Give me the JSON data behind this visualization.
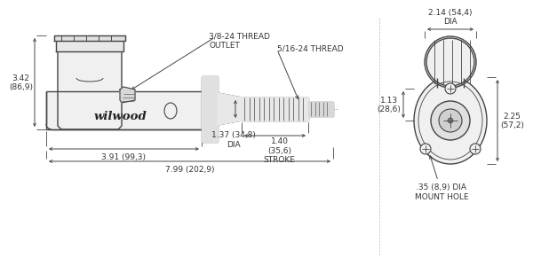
{
  "bg_color": "#ffffff",
  "line_color": "#444444",
  "text_color": "#333333",
  "annotations": {
    "thread_outlet": "3/8-24 THREAD\nOUTLET",
    "thread_side": "5/16-24 THREAD",
    "height_label": "3.42\n(86,9)",
    "length1_label": "3.91 (99,3)",
    "length2_label": "7.99 (202,9)",
    "dia_label": "1.37 (34,8)\nDIA",
    "stroke_label": "1.40\n(35,6)\nSTROKE",
    "top_dia_label": "2.14 (54,4)\nDIA",
    "side_height_label": "1.13\n(28,6)",
    "side_width_label": "2.25\n(57,2)",
    "mount_hole_label": ".35 (8,9) DIA\nMOUNT HOLE",
    "wilwood": "wilwood"
  }
}
